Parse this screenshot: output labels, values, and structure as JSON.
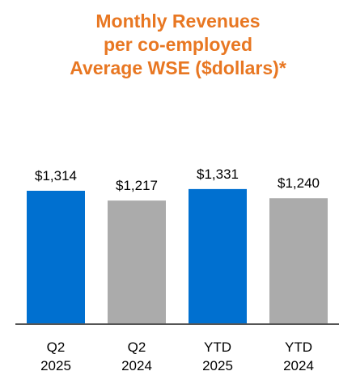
{
  "title_lines": [
    "Monthly Revenues",
    "per co-employed",
    "Average WSE ($dollars)*"
  ],
  "colors": {
    "title": "#E87722",
    "highlight": "#0070D0",
    "compare": "#ABABAB",
    "axis": "#555555",
    "text": "#000000"
  },
  "chart_data": {
    "type": "bar",
    "title": "Monthly Revenues per co-employed Average WSE ($dollars)*",
    "categories": [
      [
        "Q2",
        "2025"
      ],
      [
        "Q2",
        "2024"
      ],
      [
        "YTD",
        "2025"
      ],
      [
        "YTD",
        "2024"
      ]
    ],
    "values": [
      1314,
      1217,
      1331,
      1240
    ],
    "data_labels": [
      "$1,314",
      "$1,217",
      "$1,331",
      "$1,240"
    ],
    "bar_colors": [
      "#0070D0",
      "#ABABAB",
      "#0070D0",
      "#ABABAB"
    ],
    "xlabel": "",
    "ylabel": "",
    "grid": false
  }
}
